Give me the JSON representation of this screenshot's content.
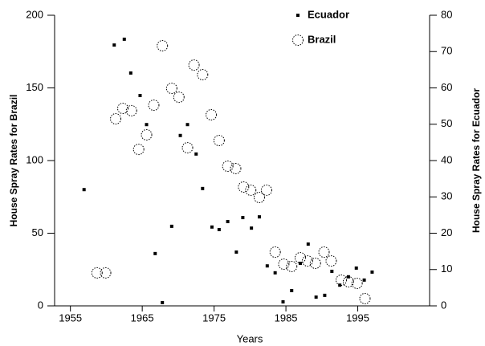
{
  "chart_data": {
    "type": "scatter",
    "xlabel": "Years",
    "ylabel": "House Spray Rates for Brazil",
    "y2label": "House Spray Rates for Ecuador",
    "xlim": [
      1952.8,
      2005
    ],
    "xticks": [
      1955,
      1965,
      1975,
      1985,
      1995
    ],
    "ylim": [
      0,
      200
    ],
    "yticks": [
      0,
      50,
      100,
      150,
      200
    ],
    "y2lim": [
      0,
      80
    ],
    "y2ticks": [
      0,
      10,
      20,
      30,
      40,
      50,
      60,
      70,
      80
    ],
    "legend": "top-right",
    "series": [
      {
        "name": "Ecuador",
        "color": "#000000",
        "marker": "square",
        "axis": "y2",
        "x": [
          1956.9,
          1961.1,
          1962.5,
          1963.4,
          1964.7,
          1965.6,
          1966.8,
          1967.8,
          1969.1,
          1970.3,
          1971.3,
          1972.5,
          1973.4,
          1974.7,
          1975.7,
          1976.9,
          1978.1,
          1979.0,
          1980.2,
          1981.3,
          1982.4,
          1983.5,
          1984.6,
          1985.8,
          1987.0,
          1988.1,
          1989.2,
          1990.4,
          1991.4,
          1992.5,
          1993.7,
          1994.8,
          1995.9,
          1997.0
        ],
        "values": [
          32,
          71.8,
          73.4,
          64.1,
          57.9,
          49.9,
          14.4,
          0.9,
          21.9,
          46.9,
          49.9,
          41.8,
          32.3,
          21.7,
          21,
          23.2,
          14.8,
          24.3,
          21.4,
          24.5,
          11,
          9.1,
          1.1,
          4.2,
          11.7,
          17,
          2.4,
          2.9,
          9.5,
          5.7,
          8,
          10.4,
          7.1,
          9.3
        ]
      },
      {
        "name": "Brazil",
        "color": "#000000",
        "marker": "circle",
        "x": [
          1958.7,
          1959.9,
          1961.3,
          1962.3,
          1963.5,
          1964.5,
          1965.6,
          1966.6,
          1967.8,
          1969.1,
          1970.1,
          1971.3,
          1972.2,
          1973.4,
          1974.6,
          1975.7,
          1976.9,
          1978.0,
          1979.1,
          1980.1,
          1981.3,
          1982.3,
          1983.5,
          1984.7,
          1985.8,
          1987.0,
          1988.0,
          1989.1,
          1990.3,
          1991.3,
          1992.7,
          1993.7,
          1994.9,
          1996.0
        ],
        "values": [
          22.7,
          22.7,
          128.7,
          135.9,
          134.3,
          107.7,
          117.7,
          138.1,
          179,
          149.7,
          143.6,
          108.8,
          165.7,
          159.1,
          131.5,
          113.8,
          96.1,
          94.5,
          81.8,
          79.6,
          74.6,
          79.6,
          37,
          28.7,
          27.1,
          33.1,
          30.9,
          29.3,
          37,
          30.9,
          17.7,
          16.6,
          15.5,
          5
        ]
      }
    ]
  }
}
